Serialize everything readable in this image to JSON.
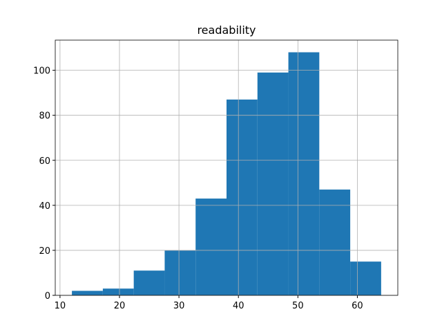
{
  "chart_data": {
    "type": "histogram",
    "title": "readability",
    "bins": [
      12,
      17.2,
      22.4,
      27.6,
      32.8,
      38,
      43.2,
      48.4,
      53.6,
      58.8,
      64
    ],
    "values": [
      2,
      3,
      11,
      20,
      43,
      87,
      99,
      108,
      47,
      15
    ],
    "color": "#1f77b4",
    "xlim": [
      9.2,
      66.8
    ],
    "xticks": [
      10,
      20,
      30,
      40,
      50,
      60
    ],
    "ylim": [
      0,
      113.4
    ],
    "yticks": [
      0,
      20,
      40,
      60,
      80,
      100
    ],
    "grid": true
  }
}
